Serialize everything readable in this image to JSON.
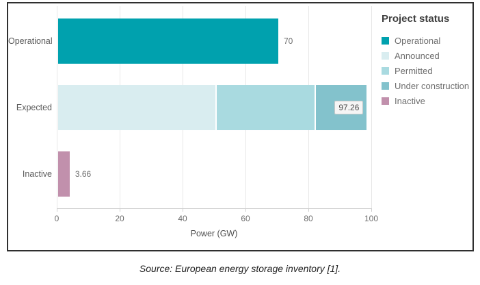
{
  "figure": {
    "source_caption": "Source: European energy storage inventory [1]."
  },
  "chart_data": {
    "type": "bar",
    "orientation": "horizontal",
    "stacked": true,
    "title": "",
    "xlabel": "Power (GW)",
    "xlim": [
      0,
      100
    ],
    "x_ticks": [
      "0",
      "20",
      "40",
      "60",
      "80",
      "100"
    ],
    "grid": true,
    "legend_position": "right",
    "legend_title": "Project status",
    "legend_entries": [
      "Operational",
      "Announced",
      "Permitted",
      "Under construction",
      "Inactive"
    ],
    "status_colors": {
      "Operational": "#00a1ae",
      "Announced": "#d9edf0",
      "Permitted": "#a9dae0",
      "Under construction": "#83c2cc",
      "Inactive": "#c190ac"
    },
    "categories": [
      "Operational",
      "Expected",
      "Inactive"
    ],
    "rows": [
      {
        "category": "Operational",
        "segments": [
          {
            "status": "Operational",
            "value": 70
          }
        ],
        "total": 70,
        "data_label": "70",
        "label_style": "outside"
      },
      {
        "category": "Expected",
        "segments": [
          {
            "status": "Announced",
            "value": 50
          },
          {
            "status": "Permitted",
            "value": 31
          },
          {
            "status": "Under construction",
            "value": 16.26
          }
        ],
        "total": 97.26,
        "data_label": "97.26",
        "label_style": "boxed"
      },
      {
        "category": "Inactive",
        "segments": [
          {
            "status": "Inactive",
            "value": 3.66
          }
        ],
        "total": 3.66,
        "data_label": "3.66",
        "label_style": "outside"
      }
    ],
    "colors": {
      "gridline": "#e7e7e7",
      "axis_line": "#cfcfcf",
      "tick_text": "#6b6b6b",
      "category_text": "#5a5a5a",
      "value_text": "#6b6b6b",
      "frame_border": "#2f2f2f"
    }
  }
}
